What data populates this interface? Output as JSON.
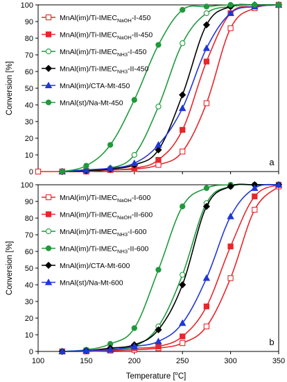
{
  "figure": {
    "xlabel_main": "Temperature [",
    "xlabel_sup": "o",
    "xlabel_end": "C]"
  },
  "chart_data": [
    {
      "type": "line",
      "panel_label": "a",
      "ylabel": "Conversion [%]",
      "xlabel": "Temperature [°C]",
      "xlim": [
        100,
        350
      ],
      "ylim": [
        0,
        100
      ],
      "xticks": [
        100,
        150,
        200,
        250,
        300,
        350
      ],
      "yticks": [
        0,
        10,
        20,
        30,
        40,
        50,
        60,
        70,
        80,
        90,
        100
      ],
      "grid": false,
      "legend_position": "top-left",
      "series": [
        {
          "name": "MnAl(im)/Ti-IMEC",
          "sub": "NaOH",
          "suffix": "-I-450",
          "color": "#e8262b",
          "marker": "square-open",
          "x": [
            100,
            125,
            150,
            175,
            200,
            225,
            250,
            275,
            300,
            325,
            350
          ],
          "y": [
            0,
            0,
            0,
            1,
            1.5,
            4,
            12,
            41,
            86,
            98,
            100
          ]
        },
        {
          "name": "MnAl(im)/Ti-IMEC",
          "sub": "NaOH",
          "suffix": "-II-450",
          "color": "#e8262b",
          "marker": "square",
          "x": [
            125,
            150,
            175,
            200,
            225,
            250,
            275,
            300,
            325,
            350
          ],
          "y": [
            0,
            0.5,
            1,
            2,
            7,
            25,
            66,
            95,
            99,
            100
          ]
        },
        {
          "name": "MnAl(im)/Ti-IMEC",
          "sub": "NH3",
          "suffix": "-I-450",
          "color": "#1f9a3b",
          "marker": "circle-open",
          "x": [
            125,
            150,
            175,
            200,
            225,
            250,
            275,
            300,
            325,
            350
          ],
          "y": [
            0,
            1,
            2,
            10,
            39,
            77,
            95,
            99,
            100,
            100
          ]
        },
        {
          "name": "MnAl(im)/Ti-IMEC",
          "sub": "NH3",
          "suffix": "-II-450",
          "color": "#000000",
          "marker": "diamond",
          "x": [
            125,
            150,
            175,
            200,
            225,
            250,
            275,
            300,
            325,
            350
          ],
          "y": [
            0,
            0.5,
            1.5,
            4,
            13,
            46,
            88,
            99,
            100,
            100
          ]
        },
        {
          "name": "MnAl(im)/CTA-Mt-450",
          "sub": "",
          "suffix": "",
          "color": "#2036d8",
          "marker": "triangle",
          "x": [
            125,
            150,
            175,
            200,
            225,
            250,
            275,
            300,
            325,
            350
          ],
          "y": [
            0,
            1,
            2,
            5,
            16,
            38,
            74,
            95,
            99,
            100
          ]
        },
        {
          "name": "MnAl(st)/Na-Mt-450",
          "sub": "",
          "suffix": "",
          "color": "#1f9a3b",
          "marker": "circle",
          "x": [
            125,
            150,
            175,
            200,
            225,
            250,
            275,
            300,
            325,
            350
          ],
          "y": [
            0,
            3.5,
            16,
            43,
            76,
            97,
            99,
            100,
            100,
            100
          ]
        }
      ]
    },
    {
      "type": "line",
      "panel_label": "b",
      "ylabel": "Conversion [%]",
      "xlabel": "Temperature [°C]",
      "xlim": [
        100,
        350
      ],
      "ylim": [
        0,
        100
      ],
      "xticks": [
        100,
        150,
        200,
        250,
        300,
        350
      ],
      "yticks": [
        0,
        10,
        20,
        30,
        40,
        50,
        60,
        70,
        80,
        90,
        100
      ],
      "grid": false,
      "legend_position": "top-left",
      "series": [
        {
          "name": "MnAl(im)/Ti-IMEC",
          "sub": "NaOH",
          "suffix": "-I-600",
          "color": "#e8262b",
          "marker": "square-open",
          "x": [
            125,
            150,
            175,
            200,
            225,
            250,
            275,
            300,
            325,
            350
          ],
          "y": [
            0,
            0,
            0.5,
            1,
            2,
            5,
            15,
            44,
            85,
            99
          ]
        },
        {
          "name": "MnAl(im)/Ti-IMEC",
          "sub": "NaOH",
          "suffix": "-II-600",
          "color": "#e8262b",
          "marker": "square",
          "x": [
            125,
            150,
            175,
            200,
            225,
            250,
            275,
            300,
            325,
            350
          ],
          "y": [
            0,
            0.5,
            1,
            2,
            3,
            9,
            27,
            63,
            93,
            100
          ]
        },
        {
          "name": "MnAl(im)/Ti-IMEC",
          "sub": "NH3",
          "suffix": "-I-600",
          "color": "#1f9a3b",
          "marker": "circle-open",
          "x": [
            125,
            150,
            175,
            200,
            225,
            250,
            275,
            300,
            325,
            350
          ],
          "y": [
            0,
            0.5,
            1.5,
            3,
            15,
            46,
            89,
            99,
            100,
            100
          ]
        },
        {
          "name": "MnAl(im)/Ti-IMEC",
          "sub": "NH3",
          "suffix": "-II-600",
          "color": "#1f9a3b",
          "marker": "circle",
          "x": [
            125,
            150,
            175,
            200,
            225,
            250,
            275,
            300,
            325,
            350
          ],
          "y": [
            0,
            1,
            4.5,
            14,
            49,
            87,
            98,
            100,
            100,
            100
          ]
        },
        {
          "name": "MnAl(im)/CTA-Mt-600",
          "sub": "",
          "suffix": "",
          "color": "#000000",
          "marker": "diamond",
          "x": [
            125,
            150,
            175,
            200,
            225,
            250,
            275,
            300,
            325,
            350
          ],
          "y": [
            0,
            0.5,
            2,
            4,
            13,
            40,
            87,
            99,
            100,
            100
          ]
        },
        {
          "name": "MnAl(st)/Na-Mt-600",
          "sub": "",
          "suffix": "",
          "color": "#2036d8",
          "marker": "triangle",
          "x": [
            125,
            150,
            175,
            200,
            225,
            250,
            275,
            300,
            325,
            350
          ],
          "y": [
            0,
            0.5,
            1,
            3,
            6,
            17,
            44,
            81,
            98,
            100
          ]
        }
      ]
    }
  ]
}
